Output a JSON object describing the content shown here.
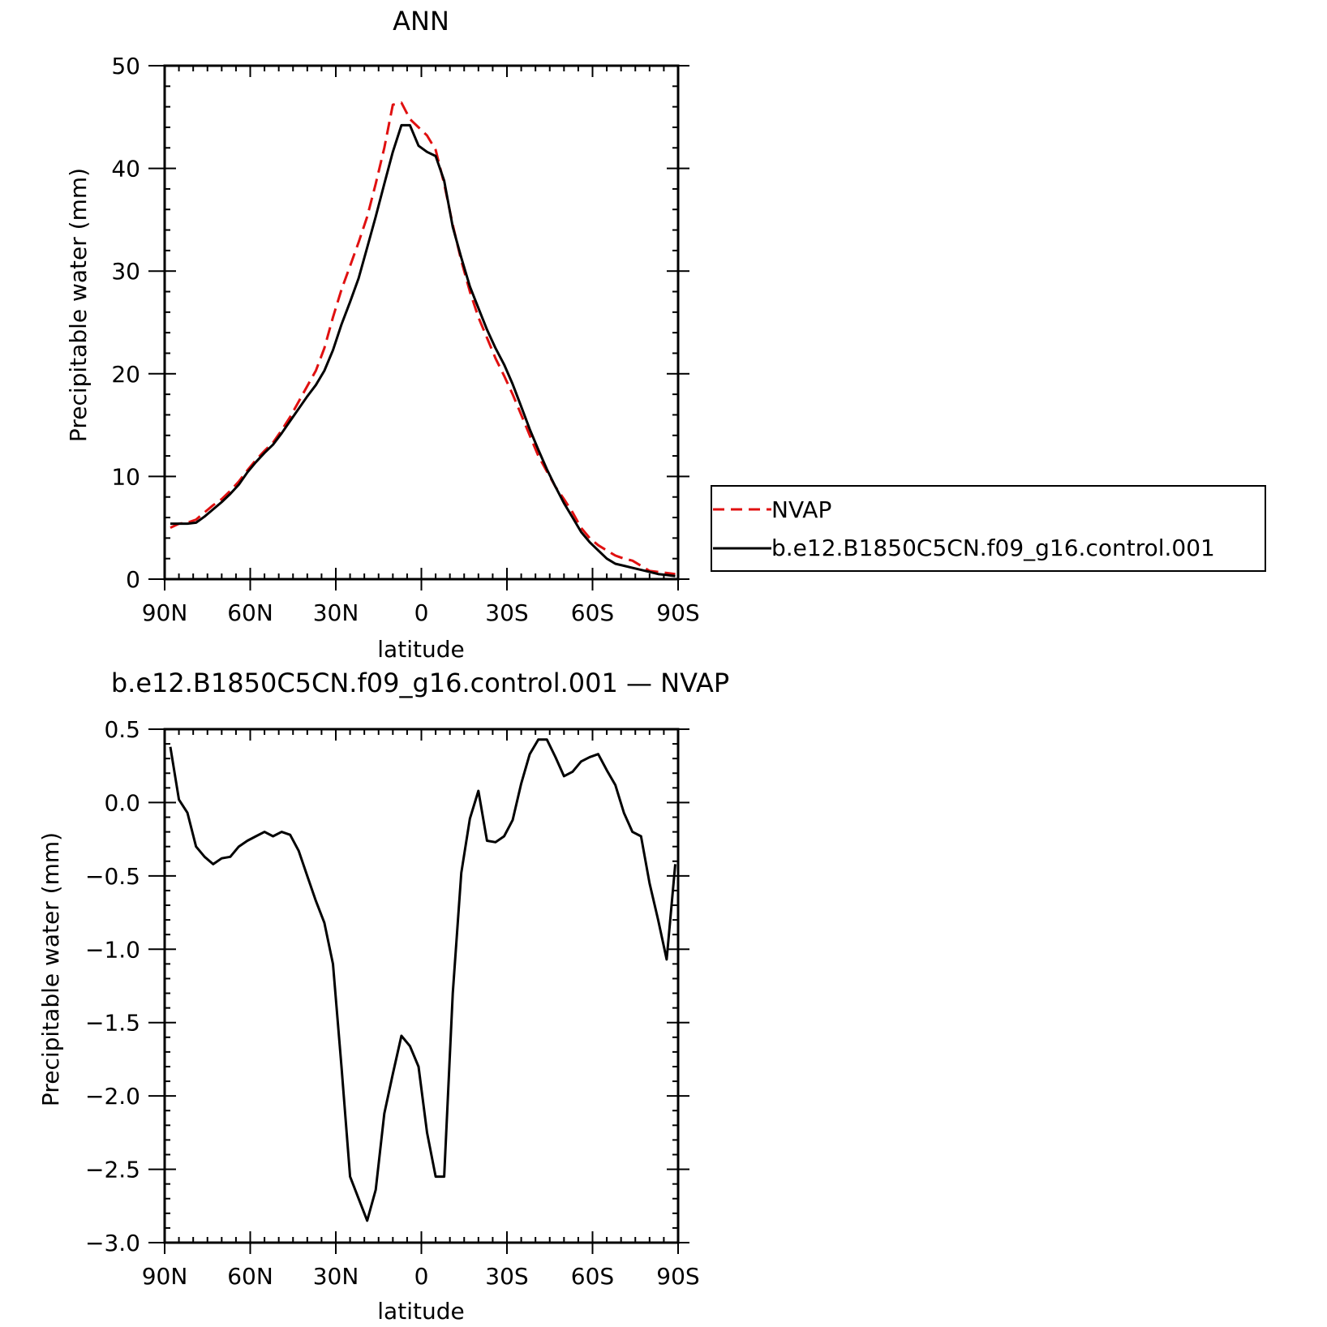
{
  "chart_data": [
    {
      "type": "line",
      "title": "ANN",
      "xlabel": "latitude",
      "ylabel": "Precipitable water (mm)",
      "xlim": [
        90,
        -90
      ],
      "ylim": [
        0,
        50
      ],
      "x_ticks": [
        90,
        60,
        30,
        0,
        -30,
        -60,
        -90
      ],
      "x_tick_labels": [
        "90N",
        "60N",
        "30N",
        "0",
        "30S",
        "60S",
        "90S"
      ],
      "y_ticks": [
        0,
        10,
        20,
        30,
        40,
        50
      ],
      "y_tick_labels": [
        "0",
        "10",
        "20",
        "30",
        "40",
        "50"
      ],
      "legend_placement": "right",
      "series": [
        {
          "name": "NVAP",
          "color": "#e01010",
          "dash": "dashed",
          "x": [
            88,
            85,
            82,
            79,
            76,
            73,
            70,
            67,
            64,
            61,
            58,
            55,
            52,
            49,
            46,
            43,
            40,
            37,
            34,
            31,
            28,
            25,
            22,
            19,
            16,
            13,
            10,
            7,
            4,
            1,
            -2,
            -5,
            -8,
            -11,
            -14,
            -17,
            -20,
            -23,
            -26,
            -29,
            -32,
            -35,
            -38,
            -41,
            -44,
            -47,
            -50,
            -53,
            -56,
            -59,
            -62,
            -65,
            -68,
            -71,
            -74,
            -77,
            -80,
            -83,
            -86,
            -89
          ],
          "y": [
            5.0,
            5.4,
            5.5,
            5.8,
            6.5,
            7.2,
            7.8,
            8.6,
            9.5,
            10.6,
            11.6,
            12.5,
            13.3,
            14.5,
            15.8,
            17.3,
            18.8,
            20.3,
            22.5,
            25.5,
            28.2,
            30.5,
            32.8,
            35.3,
            38.5,
            42.0,
            46.2,
            46.4,
            44.8,
            44.0,
            43.2,
            41.8,
            38.5,
            34.5,
            31.0,
            28.0,
            25.5,
            23.5,
            21.5,
            19.8,
            18.0,
            16.0,
            14.0,
            12.0,
            10.5,
            9.0,
            7.8,
            6.5,
            5.0,
            4.0,
            3.3,
            2.8,
            2.3,
            2.0,
            1.8,
            1.3,
            0.8,
            0.7,
            0.6,
            0.5
          ],
          "values_fix_note": ""
        },
        {
          "name": "b.e12.B1850C5CN.f09_g16.control.001",
          "color": "#000000",
          "dash": "solid",
          "x": [
            88,
            85,
            82,
            79,
            76,
            73,
            70,
            67,
            64,
            61,
            58,
            55,
            52,
            49,
            46,
            43,
            40,
            37,
            34,
            31,
            28,
            25,
            22,
            19,
            16,
            13,
            10,
            7,
            4,
            1,
            -2,
            -5,
            -8,
            -11,
            -14,
            -17,
            -20,
            -23,
            -26,
            -29,
            -32,
            -35,
            -38,
            -41,
            -44,
            -47,
            -50,
            -53,
            -56,
            -59,
            -62,
            -65,
            -68,
            -71,
            -74,
            -77,
            -80,
            -83,
            -86,
            -89
          ],
          "y": [
            5.4,
            5.4,
            5.4,
            5.5,
            6.1,
            6.8,
            7.5,
            8.3,
            9.2,
            10.4,
            11.4,
            12.3,
            13.1,
            14.2,
            15.4,
            16.6,
            17.8,
            18.9,
            20.3,
            22.3,
            24.8,
            27.0,
            29.3,
            32.3,
            35.3,
            38.5,
            41.6,
            44.2,
            44.2,
            42.2,
            41.6,
            41.2,
            38.8,
            34.3,
            31.3,
            28.5,
            26.4,
            24.3,
            22.5,
            20.9,
            19.0,
            16.8,
            14.6,
            12.6,
            10.7,
            9.0,
            7.4,
            6.0,
            4.6,
            3.6,
            2.8,
            2.0,
            1.5,
            1.3,
            1.1,
            0.9,
            0.7,
            0.5,
            0.4,
            0.3
          ]
        }
      ]
    },
    {
      "type": "line",
      "title": "b.e12.B1850C5CN.f09_g16.control.001  —  NVAP",
      "xlabel": "latitude",
      "ylabel": "Precipitable water (mm)",
      "xlim": [
        90,
        -90
      ],
      "ylim": [
        -3.0,
        0.5
      ],
      "x_ticks": [
        90,
        60,
        30,
        0,
        -30,
        -60,
        -90
      ],
      "x_tick_labels": [
        "90N",
        "60N",
        "30N",
        "0",
        "30S",
        "60S",
        "90S"
      ],
      "y_ticks": [
        0.5,
        0.0,
        -0.5,
        -1.0,
        -1.5,
        -2.0,
        -2.5,
        -3.0
      ],
      "y_tick_labels": [
        "0.5",
        "0.0",
        "−0.5",
        "−1.0",
        "−1.5",
        "−2.0",
        "−2.5",
        "−3.0"
      ],
      "series": [
        {
          "color": "#000000",
          "dash": "solid",
          "x": [
            88,
            85,
            82,
            79,
            76,
            73,
            70,
            67,
            64,
            61,
            58,
            55,
            52,
            49,
            46,
            43,
            40,
            37,
            34,
            31,
            28,
            25,
            22,
            19,
            16,
            13,
            10,
            7,
            4,
            1,
            -2,
            -5,
            -8,
            -11,
            -14,
            -17,
            -20,
            -23,
            -26,
            -29,
            -32,
            -35,
            -38,
            -41,
            -44,
            -47,
            -50,
            -53,
            -56,
            -59,
            -62,
            -65,
            -68,
            -71,
            -74,
            -77,
            -80,
            -83,
            -86,
            -89
          ],
          "y": [
            0.38,
            0.02,
            -0.07,
            -0.3,
            -0.37,
            -0.42,
            -0.38,
            -0.37,
            -0.3,
            -0.26,
            -0.23,
            -0.2,
            -0.23,
            -0.2,
            -0.22,
            -0.33,
            -0.5,
            -0.67,
            -0.82,
            -1.1,
            -1.8,
            -2.55,
            -2.7,
            -2.85,
            -2.64,
            -2.12,
            -1.85,
            -1.59,
            -1.66,
            -1.8,
            -2.25,
            -2.55,
            -2.55,
            -1.3,
            -0.48,
            -0.11,
            0.08,
            -0.26,
            -0.27,
            -0.23,
            -0.12,
            0.13,
            0.33,
            0.43,
            0.43,
            0.31,
            0.18,
            0.21,
            0.28,
            0.31,
            0.33,
            0.22,
            0.12,
            -0.07,
            -0.2,
            -0.23,
            -0.55,
            -0.8,
            -1.07,
            -0.42
          ]
        }
      ]
    }
  ]
}
